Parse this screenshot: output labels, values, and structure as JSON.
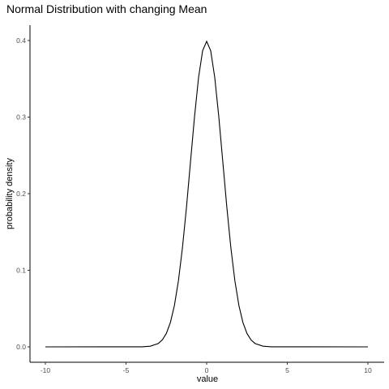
{
  "chart_data": {
    "type": "line",
    "title": "Normal Distribution with changing Mean",
    "xlabel": "value",
    "ylabel": "probability density",
    "xlim": [
      -10,
      10
    ],
    "ylim": [
      0,
      0.4
    ],
    "x_ticks": [
      -10,
      -5,
      0,
      5,
      10
    ],
    "x_tick_labels": [
      "-10",
      "-5",
      "0",
      "5",
      "10"
    ],
    "y_ticks": [
      0.0,
      0.1,
      0.2,
      0.3,
      0.4
    ],
    "y_tick_labels": [
      "0.0",
      "0.1",
      "0.2",
      "0.3",
      "0.4"
    ],
    "grid": false,
    "legend": "none",
    "series": [
      {
        "color": "#000000",
        "x": [
          -10,
          -4,
          -3.5,
          -3,
          -2.75,
          -2.5,
          -2.25,
          -2,
          -1.75,
          -1.5,
          -1.25,
          -1,
          -0.75,
          -0.5,
          -0.25,
          0,
          0.25,
          0.5,
          0.75,
          1,
          1.25,
          1.5,
          1.75,
          2,
          2.25,
          2.5,
          2.75,
          3,
          3.5,
          4,
          10
        ],
        "y": [
          0.0,
          0.0001,
          0.0009,
          0.0044,
          0.0091,
          0.0175,
          0.0317,
          0.054,
          0.0863,
          0.1295,
          0.1826,
          0.242,
          0.3011,
          0.3521,
          0.3867,
          0.3989,
          0.3867,
          0.3521,
          0.3011,
          0.242,
          0.1826,
          0.1295,
          0.0863,
          0.054,
          0.0317,
          0.0175,
          0.0091,
          0.0044,
          0.0009,
          0.0001,
          0.0
        ]
      }
    ]
  }
}
